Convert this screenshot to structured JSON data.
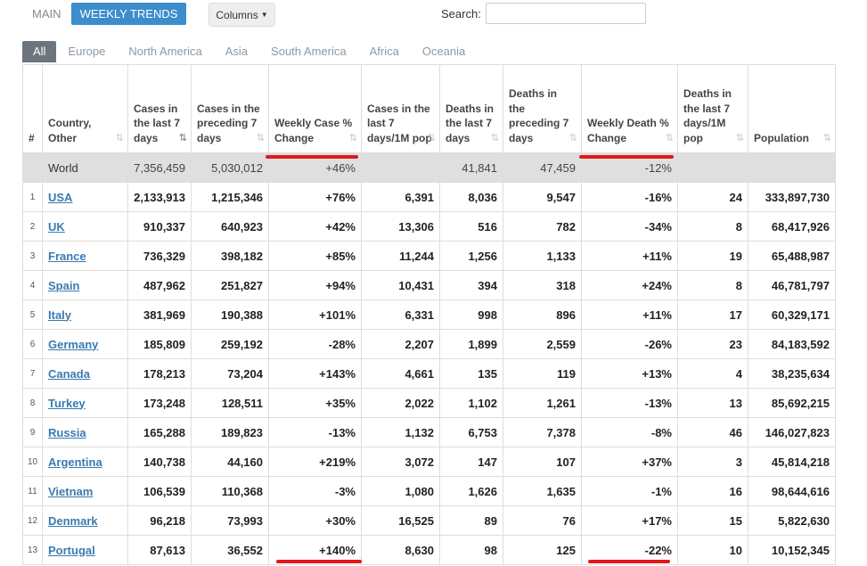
{
  "topbar": {
    "main_label": "MAIN",
    "weekly_label": "WEEKLY TRENDS",
    "columns_label": "Columns",
    "search_label": "Search:",
    "search_value": ""
  },
  "tabs": [
    "All",
    "Europe",
    "North America",
    "Asia",
    "South America",
    "Africa",
    "Oceania"
  ],
  "table": {
    "headers": [
      "#",
      "Country, Other",
      "Cases in the last 7 days",
      "Cases in the preceding 7 days",
      "Weekly Case % Change",
      "Cases in the last 7 days/1M pop",
      "Deaths in the last 7 days",
      "Deaths in the preceding 7 days",
      "Weekly Death % Change",
      "Deaths in the last 7 days/1M pop",
      "Population"
    ],
    "world": [
      "",
      "World",
      "7,356,459",
      "5,030,012",
      "+46%",
      "",
      "41,841",
      "47,459",
      "-12%",
      "",
      ""
    ],
    "rows": [
      [
        "1",
        "USA",
        "2,133,913",
        "1,215,346",
        "+76%",
        "6,391",
        "8,036",
        "9,547",
        "-16%",
        "24",
        "333,897,730"
      ],
      [
        "2",
        "UK",
        "910,337",
        "640,923",
        "+42%",
        "13,306",
        "516",
        "782",
        "-34%",
        "8",
        "68,417,926"
      ],
      [
        "3",
        "France",
        "736,329",
        "398,182",
        "+85%",
        "11,244",
        "1,256",
        "1,133",
        "+11%",
        "19",
        "65,488,987"
      ],
      [
        "4",
        "Spain",
        "487,962",
        "251,827",
        "+94%",
        "10,431",
        "394",
        "318",
        "+24%",
        "8",
        "46,781,797"
      ],
      [
        "5",
        "Italy",
        "381,969",
        "190,388",
        "+101%",
        "6,331",
        "998",
        "896",
        "+11%",
        "17",
        "60,329,171"
      ],
      [
        "6",
        "Germany",
        "185,809",
        "259,192",
        "-28%",
        "2,207",
        "1,899",
        "2,559",
        "-26%",
        "23",
        "84,183,592"
      ],
      [
        "7",
        "Canada",
        "178,213",
        "73,204",
        "+143%",
        "4,661",
        "135",
        "119",
        "+13%",
        "4",
        "38,235,634"
      ],
      [
        "8",
        "Turkey",
        "173,248",
        "128,511",
        "+35%",
        "2,022",
        "1,102",
        "1,261",
        "-13%",
        "13",
        "85,692,215"
      ],
      [
        "9",
        "Russia",
        "165,288",
        "189,823",
        "-13%",
        "1,132",
        "6,753",
        "7,378",
        "-8%",
        "46",
        "146,027,823"
      ],
      [
        "10",
        "Argentina",
        "140,738",
        "44,160",
        "+219%",
        "3,072",
        "147",
        "107",
        "+37%",
        "3",
        "45,814,218"
      ],
      [
        "11",
        "Vietnam",
        "106,539",
        "110,368",
        "-3%",
        "1,080",
        "1,626",
        "1,635",
        "-1%",
        "16",
        "98,644,616"
      ],
      [
        "12",
        "Denmark",
        "96,218",
        "73,993",
        "+30%",
        "16,525",
        "89",
        "76",
        "+17%",
        "15",
        "5,822,630"
      ],
      [
        "13",
        "Portugal",
        "87,613",
        "36,552",
        "+140%",
        "8,630",
        "98",
        "125",
        "-22%",
        "10",
        "10,152,345"
      ]
    ]
  },
  "colors": {
    "accent": "#3c8dcb",
    "world_row_bg": "#dfdfdf",
    "link": "#3a7ab0",
    "highlight_line": "#e1181b"
  }
}
